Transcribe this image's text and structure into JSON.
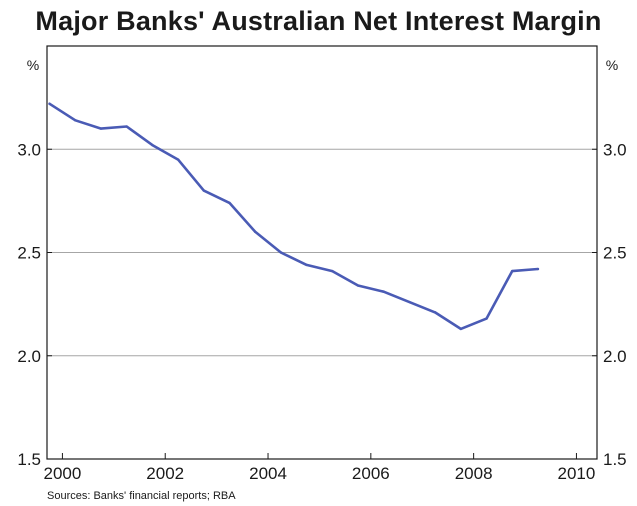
{
  "chart_data": {
    "type": "line",
    "title": "Major Banks' Australian Net Interest Margin",
    "y_unit_left": "%",
    "y_unit_right": "%",
    "xlim": [
      1999.7,
      2010.4
    ],
    "ylim": [
      1.5,
      3.5
    ],
    "x_ticks": [
      2000,
      2002,
      2004,
      2006,
      2008,
      2010
    ],
    "x_tick_labels": [
      "2000",
      "2002",
      "2004",
      "2006",
      "2008",
      "2010"
    ],
    "y_ticks": [
      1.5,
      2.0,
      2.5,
      3.0
    ],
    "y_tick_labels": [
      "1.5",
      "2.0",
      "2.5",
      "3.0"
    ],
    "grid": "horizontal",
    "series": [
      {
        "color": "#4a5bb5",
        "x": [
          1999.75,
          2000.25,
          2000.75,
          2001.25,
          2001.75,
          2002.25,
          2002.75,
          2003.25,
          2003.75,
          2004.25,
          2004.75,
          2005.25,
          2005.75,
          2006.25,
          2006.75,
          2007.25,
          2007.75,
          2008.25,
          2008.75,
          2009.25
        ],
        "y": [
          3.22,
          3.14,
          3.1,
          3.11,
          3.02,
          2.95,
          2.8,
          2.74,
          2.6,
          2.5,
          2.44,
          2.41,
          2.34,
          2.31,
          2.26,
          2.21,
          2.13,
          2.18,
          2.41,
          2.42
        ]
      }
    ],
    "source": "Sources: Banks' financial reports; RBA"
  }
}
